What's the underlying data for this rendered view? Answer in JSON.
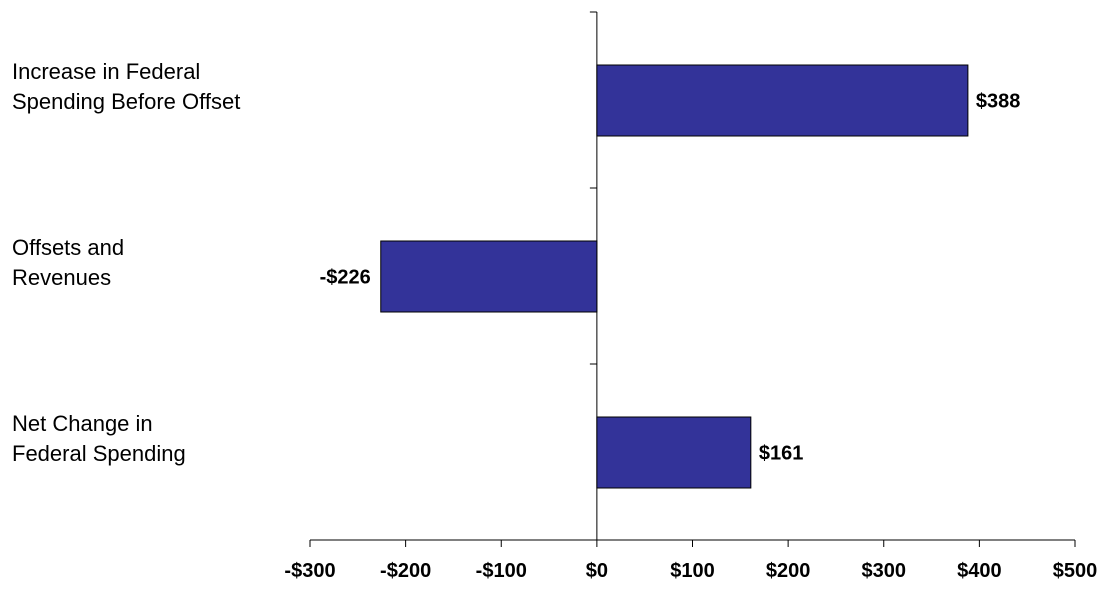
{
  "colors": {
    "bar_fill": "#333399",
    "bar_stroke": "#000000",
    "axis": "#000000",
    "background": "#ffffff"
  },
  "chart_data": {
    "type": "bar",
    "orientation": "horizontal",
    "title": "",
    "xlabel": "",
    "ylabel": "",
    "categories": [
      [
        "Increase in Federal",
        "Spending Before Offset"
      ],
      [
        "Offsets and",
        "Revenues"
      ],
      [
        "Net Change in",
        "Federal Spending"
      ]
    ],
    "values": [
      388,
      -226,
      161
    ],
    "data_labels": [
      "$388",
      "-$226",
      "$161"
    ],
    "xlim": [
      -300,
      500
    ],
    "xticks": [
      -300,
      -200,
      -100,
      0,
      100,
      200,
      300,
      400,
      500
    ],
    "xtick_labels": [
      "-$300",
      "-$200",
      "-$100",
      "$0",
      "$100",
      "$200",
      "$300",
      "$400",
      "$500"
    ],
    "grid": false,
    "legend": "none"
  }
}
